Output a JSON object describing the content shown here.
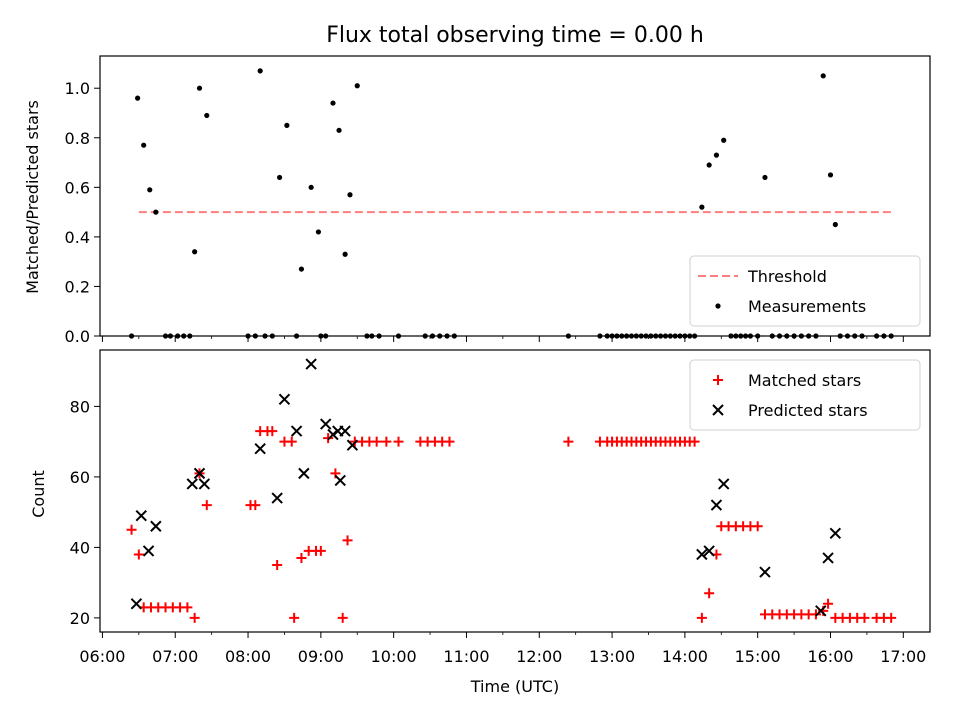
{
  "chart_data": [
    {
      "type": "scatter",
      "title": "Flux total observing time = 0.00 h",
      "xlabel": "",
      "ylabel": "Matched/Predicted stars",
      "ylim": [
        0,
        1.13
      ],
      "xlim": [
        "05:58",
        "17:22"
      ],
      "y_ticks": [
        "0.0",
        "0.2",
        "0.4",
        "0.6",
        "0.8",
        "1.0"
      ],
      "legend_position": "lower-right",
      "threshold": {
        "name": "Threshold",
        "value": 0.5,
        "x_start": "06:30",
        "x_end": "16:50",
        "color": "#ff7f7f",
        "style": "dashed"
      },
      "series": [
        {
          "name": "Measurements",
          "color": "#000000",
          "marker": "dot",
          "points": [
            [
              "06:24",
              0
            ],
            [
              "06:29",
              0.96
            ],
            [
              "06:34",
              0.77
            ],
            [
              "06:39",
              0.59
            ],
            [
              "06:44",
              0.5
            ],
            [
              "06:52",
              0
            ],
            [
              "06:56",
              0
            ],
            [
              "07:02",
              0
            ],
            [
              "07:07",
              0
            ],
            [
              "07:12",
              0
            ],
            [
              "07:16",
              0.34
            ],
            [
              "07:20",
              1.0
            ],
            [
              "07:26",
              0.89
            ],
            [
              "08:00",
              0
            ],
            [
              "08:06",
              0
            ],
            [
              "08:10",
              1.07
            ],
            [
              "08:14",
              0
            ],
            [
              "08:20",
              0
            ],
            [
              "08:26",
              0.64
            ],
            [
              "08:32",
              0.85
            ],
            [
              "08:40",
              0
            ],
            [
              "08:44",
              0.27
            ],
            [
              "08:52",
              0.6
            ],
            [
              "08:58",
              0.42
            ],
            [
              "09:00",
              0
            ],
            [
              "09:04",
              0
            ],
            [
              "09:10",
              0.94
            ],
            [
              "09:15",
              0.83
            ],
            [
              "09:20",
              0.33
            ],
            [
              "09:24",
              0.57
            ],
            [
              "09:30",
              1.01
            ],
            [
              "09:38",
              0
            ],
            [
              "09:42",
              0
            ],
            [
              "09:48",
              0
            ],
            [
              "10:04",
              0
            ],
            [
              "10:26",
              0
            ],
            [
              "10:32",
              0
            ],
            [
              "10:38",
              0
            ],
            [
              "10:44",
              0
            ],
            [
              "10:50",
              0
            ],
            [
              "12:24",
              0
            ],
            [
              "12:50",
              0
            ],
            [
              "12:56",
              0
            ],
            [
              "13:00",
              0
            ],
            [
              "13:04",
              0
            ],
            [
              "13:08",
              0
            ],
            [
              "13:12",
              0
            ],
            [
              "13:16",
              0
            ],
            [
              "13:20",
              0
            ],
            [
              "13:24",
              0
            ],
            [
              "13:28",
              0
            ],
            [
              "13:32",
              0
            ],
            [
              "13:36",
              0
            ],
            [
              "13:40",
              0
            ],
            [
              "13:44",
              0
            ],
            [
              "13:48",
              0
            ],
            [
              "13:52",
              0
            ],
            [
              "13:56",
              0
            ],
            [
              "14:00",
              0
            ],
            [
              "14:04",
              0
            ],
            [
              "14:08",
              0
            ],
            [
              "14:14",
              0.52
            ],
            [
              "14:20",
              0.69
            ],
            [
              "14:26",
              0.73
            ],
            [
              "14:32",
              0.79
            ],
            [
              "14:38",
              0
            ],
            [
              "14:42",
              0
            ],
            [
              "14:46",
              0
            ],
            [
              "14:50",
              0
            ],
            [
              "14:54",
              0
            ],
            [
              "15:00",
              0
            ],
            [
              "15:06",
              0.64
            ],
            [
              "15:12",
              0
            ],
            [
              "15:18",
              0
            ],
            [
              "15:24",
              0
            ],
            [
              "15:30",
              0
            ],
            [
              "15:36",
              0
            ],
            [
              "15:42",
              0
            ],
            [
              "15:48",
              0
            ],
            [
              "15:54",
              1.05
            ],
            [
              "16:00",
              0.65
            ],
            [
              "16:04",
              0.45
            ],
            [
              "16:08",
              0
            ],
            [
              "16:14",
              0
            ],
            [
              "16:20",
              0
            ],
            [
              "16:26",
              0
            ],
            [
              "16:38",
              0
            ],
            [
              "16:44",
              0
            ],
            [
              "16:50",
              0
            ]
          ]
        }
      ]
    },
    {
      "type": "scatter",
      "title": "",
      "xlabel": "Time (UTC)",
      "ylabel": "Count",
      "ylim": [
        16,
        96
      ],
      "xlim": [
        "05:58",
        "17:22"
      ],
      "y_ticks": [
        "20",
        "40",
        "60",
        "80"
      ],
      "x_ticks": [
        "06:00",
        "07:00",
        "08:00",
        "09:00",
        "10:00",
        "11:00",
        "12:00",
        "13:00",
        "14:00",
        "15:00",
        "16:00",
        "17:00"
      ],
      "legend_position": "upper-right",
      "series": [
        {
          "name": "Matched stars",
          "color": "#ff0000",
          "marker": "plus",
          "points": [
            [
              "06:24",
              45
            ],
            [
              "06:30",
              38
            ],
            [
              "06:34",
              23
            ],
            [
              "06:40",
              23
            ],
            [
              "06:46",
              23
            ],
            [
              "06:52",
              23
            ],
            [
              "06:58",
              23
            ],
            [
              "07:04",
              23
            ],
            [
              "07:10",
              23
            ],
            [
              "07:16",
              20
            ],
            [
              "07:20",
              61
            ],
            [
              "07:26",
              52
            ],
            [
              "08:02",
              52
            ],
            [
              "08:06",
              52
            ],
            [
              "08:10",
              73
            ],
            [
              "08:16",
              73
            ],
            [
              "08:20",
              73
            ],
            [
              "08:24",
              35
            ],
            [
              "08:30",
              70
            ],
            [
              "08:36",
              70
            ],
            [
              "08:38",
              20
            ],
            [
              "08:44",
              37
            ],
            [
              "08:50",
              39
            ],
            [
              "08:56",
              39
            ],
            [
              "09:00",
              39
            ],
            [
              "09:06",
              71
            ],
            [
              "09:12",
              61
            ],
            [
              "09:18",
              20
            ],
            [
              "09:22",
              42
            ],
            [
              "09:28",
              70
            ],
            [
              "09:34",
              70
            ],
            [
              "09:40",
              70
            ],
            [
              "09:46",
              70
            ],
            [
              "09:54",
              70
            ],
            [
              "10:04",
              70
            ],
            [
              "10:22",
              70
            ],
            [
              "10:28",
              70
            ],
            [
              "10:34",
              70
            ],
            [
              "10:40",
              70
            ],
            [
              "10:46",
              70
            ],
            [
              "12:24",
              70
            ],
            [
              "12:50",
              70
            ],
            [
              "12:56",
              70
            ],
            [
              "13:00",
              70
            ],
            [
              "13:04",
              70
            ],
            [
              "13:08",
              70
            ],
            [
              "13:12",
              70
            ],
            [
              "13:16",
              70
            ],
            [
              "13:20",
              70
            ],
            [
              "13:24",
              70
            ],
            [
              "13:28",
              70
            ],
            [
              "13:32",
              70
            ],
            [
              "13:36",
              70
            ],
            [
              "13:40",
              70
            ],
            [
              "13:44",
              70
            ],
            [
              "13:48",
              70
            ],
            [
              "13:52",
              70
            ],
            [
              "13:56",
              70
            ],
            [
              "14:00",
              70
            ],
            [
              "14:04",
              70
            ],
            [
              "14:08",
              70
            ],
            [
              "14:14",
              20
            ],
            [
              "14:20",
              27
            ],
            [
              "14:26",
              38
            ],
            [
              "14:30",
              46
            ],
            [
              "14:36",
              46
            ],
            [
              "14:42",
              46
            ],
            [
              "14:48",
              46
            ],
            [
              "14:54",
              46
            ],
            [
              "15:00",
              46
            ],
            [
              "15:06",
              21
            ],
            [
              "15:12",
              21
            ],
            [
              "15:18",
              21
            ],
            [
              "15:24",
              21
            ],
            [
              "15:30",
              21
            ],
            [
              "15:36",
              21
            ],
            [
              "15:42",
              21
            ],
            [
              "15:48",
              21
            ],
            [
              "15:54",
              22
            ],
            [
              "15:58",
              24
            ],
            [
              "16:04",
              20
            ],
            [
              "16:10",
              20
            ],
            [
              "16:16",
              20
            ],
            [
              "16:22",
              20
            ],
            [
              "16:28",
              20
            ],
            [
              "16:38",
              20
            ],
            [
              "16:44",
              20
            ],
            [
              "16:50",
              20
            ]
          ]
        },
        {
          "name": "Predicted stars",
          "color": "#000000",
          "marker": "x",
          "points": [
            [
              "06:28",
              24
            ],
            [
              "06:32",
              49
            ],
            [
              "06:38",
              39
            ],
            [
              "06:44",
              46
            ],
            [
              "07:14",
              58
            ],
            [
              "07:20",
              61
            ],
            [
              "07:24",
              58
            ],
            [
              "08:10",
              68
            ],
            [
              "08:24",
              54
            ],
            [
              "08:30",
              82
            ],
            [
              "08:40",
              73
            ],
            [
              "08:46",
              61
            ],
            [
              "08:52",
              92
            ],
            [
              "09:04",
              75
            ],
            [
              "09:10",
              72
            ],
            [
              "09:14",
              73
            ],
            [
              "09:16",
              59
            ],
            [
              "09:20",
              73
            ],
            [
              "09:26",
              69
            ],
            [
              "14:14",
              38
            ],
            [
              "14:20",
              39
            ],
            [
              "14:26",
              52
            ],
            [
              "14:32",
              58
            ],
            [
              "15:06",
              33
            ],
            [
              "15:52",
              22
            ],
            [
              "15:58",
              37
            ],
            [
              "16:04",
              44
            ]
          ]
        }
      ]
    }
  ]
}
